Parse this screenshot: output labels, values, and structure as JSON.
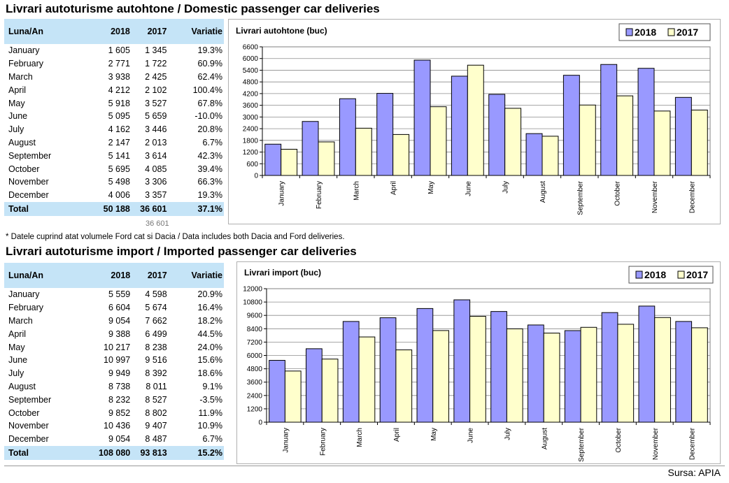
{
  "domestic": {
    "title": "Livrari autoturisme autohtone / Domestic passenger car deliveries",
    "table": {
      "headers": [
        "Luna/An",
        "2018",
        "2017",
        "Variatie"
      ],
      "rows": [
        [
          "January",
          "1 605",
          "1 345",
          "19.3%"
        ],
        [
          "February",
          "2 771",
          "1 722",
          "60.9%"
        ],
        [
          "March",
          "3 938",
          "2 425",
          "62.4%"
        ],
        [
          "April",
          "4 212",
          "2 102",
          "100.4%"
        ],
        [
          "May",
          "5 918",
          "3 527",
          "67.8%"
        ],
        [
          "June",
          "5 095",
          "5 659",
          "-10.0%"
        ],
        [
          "July",
          "4 162",
          "3 446",
          "20.8%"
        ],
        [
          "August",
          "2 147",
          "2 013",
          "6.7%"
        ],
        [
          "September",
          "5 141",
          "3 614",
          "42.3%"
        ],
        [
          "October",
          "5 695",
          "4 085",
          "39.4%"
        ],
        [
          "November",
          "5 498",
          "3 306",
          "66.3%"
        ],
        [
          "December",
          "4 006",
          "3 357",
          "19.3%"
        ]
      ],
      "total": [
        "Total",
        "50 188",
        "36 601",
        "37.1%"
      ]
    },
    "below_total": "36 601",
    "note": "* Datele cuprind atat volumele Ford cat si Dacia / Data includes both Dacia and Ford deliveries."
  },
  "imported": {
    "title": "Livrari autoturisme import / Imported passenger car deliveries",
    "table": {
      "headers": [
        "Luna/An",
        "2018",
        "2017",
        "Variatie"
      ],
      "rows": [
        [
          "January",
          "5 559",
          "4 598",
          "20.9%"
        ],
        [
          "February",
          "6 604",
          "5 674",
          "16.4%"
        ],
        [
          "March",
          "9 054",
          "7 662",
          "18.2%"
        ],
        [
          "April",
          "9 388",
          "6 499",
          "44.5%"
        ],
        [
          "May",
          "10 217",
          "8 238",
          "24.0%"
        ],
        [
          "June",
          "10 997",
          "9 516",
          "15.6%"
        ],
        [
          "July",
          "9 949",
          "8 392",
          "18.6%"
        ],
        [
          "August",
          "8 738",
          "8 011",
          "9.1%"
        ],
        [
          "September",
          "8 232",
          "8 527",
          "-3.5%"
        ],
        [
          "October",
          "9 852",
          "8 802",
          "11.9%"
        ],
        [
          "November",
          "10 436",
          "9 407",
          "10.9%"
        ],
        [
          "December",
          "9 054",
          "8 487",
          "6.7%"
        ]
      ],
      "total": [
        "Total",
        "108 080",
        "93 813",
        "15.2%"
      ]
    }
  },
  "source": "Sursa: APIA",
  "colors": {
    "series2018": "#9999ff",
    "series2017": "#ffffcc",
    "header_bg": "#c5e4f7"
  },
  "chart_data": [
    {
      "type": "bar",
      "title": "Livrari autohtone (buc)",
      "categories": [
        "January",
        "February",
        "March",
        "April",
        "May",
        "June",
        "July",
        "August",
        "September",
        "October",
        "November",
        "December"
      ],
      "series": [
        {
          "name": "2018",
          "values": [
            1605,
            2771,
            3938,
            4212,
            5918,
            5095,
            4162,
            2147,
            5141,
            5695,
            5498,
            4006
          ]
        },
        {
          "name": "2017",
          "values": [
            1345,
            1722,
            2425,
            2102,
            3527,
            5659,
            3446,
            2013,
            3614,
            4085,
            3306,
            3357
          ]
        }
      ],
      "yticks": [
        "0",
        "600",
        "1200",
        "1800",
        "2400",
        "3000",
        "3600",
        "4200",
        "4800",
        "5400",
        "6000",
        "6600"
      ],
      "ylim": [
        0,
        6600
      ],
      "grid": true,
      "legend": "top-right"
    },
    {
      "type": "bar",
      "title": "Livrari import (buc)",
      "categories": [
        "January",
        "February",
        "March",
        "April",
        "May",
        "June",
        "July",
        "August",
        "September",
        "October",
        "November",
        "December"
      ],
      "series": [
        {
          "name": "2018",
          "values": [
            5559,
            6604,
            9054,
            9388,
            10217,
            10997,
            9949,
            8738,
            8232,
            9852,
            10436,
            9054
          ]
        },
        {
          "name": "2017",
          "values": [
            4598,
            5674,
            7662,
            6499,
            8238,
            9516,
            8392,
            8011,
            8527,
            8802,
            9407,
            8487
          ]
        }
      ],
      "yticks": [
        "0",
        "1200",
        "2400",
        "3600",
        "4800",
        "6000",
        "7200",
        "8400",
        "9600",
        "10800",
        "12000"
      ],
      "ylim": [
        0,
        12000
      ],
      "grid": true,
      "legend": "top-right"
    }
  ]
}
